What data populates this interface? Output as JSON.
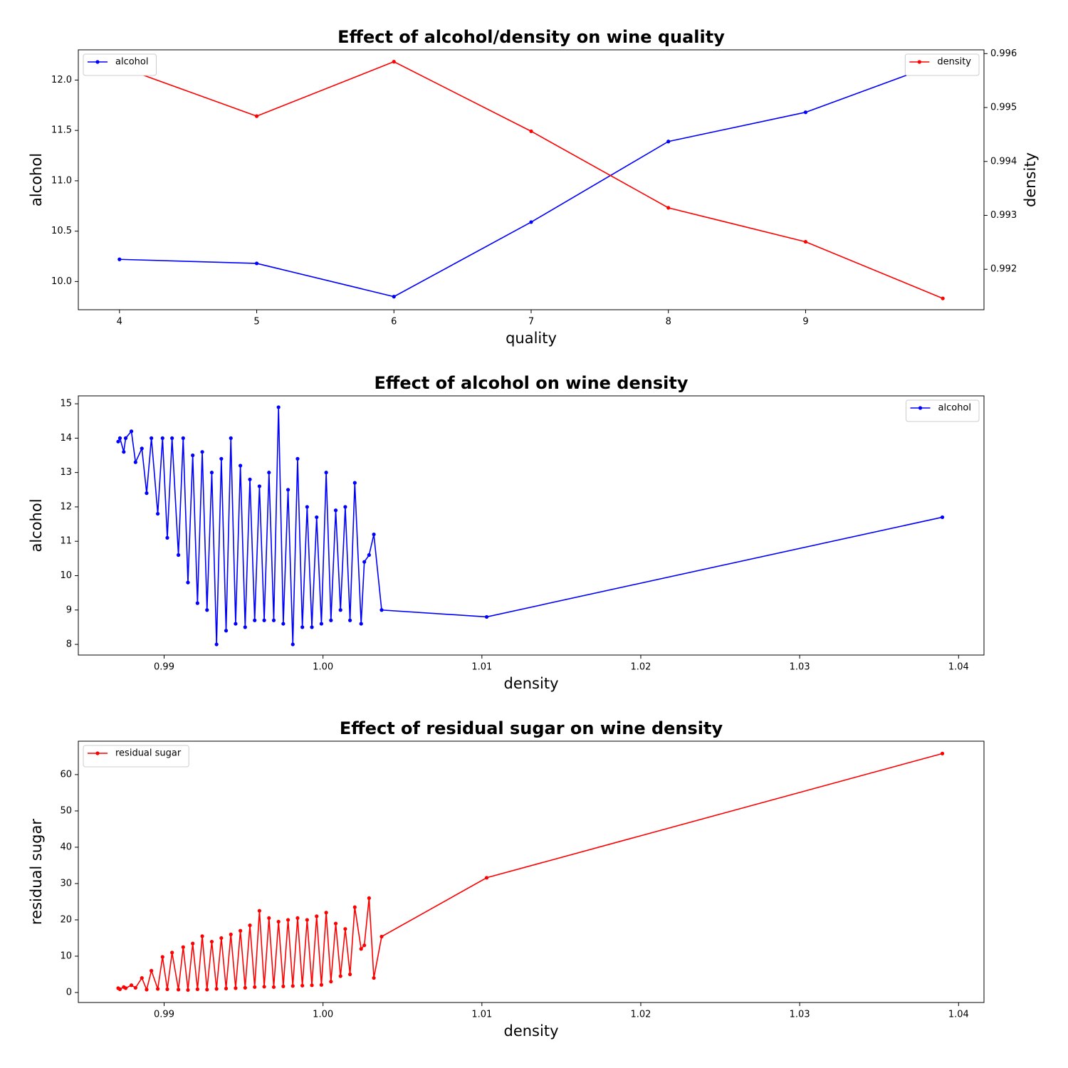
{
  "chart_data": [
    {
      "type": "line",
      "title": "Effect of alcohol/density on wine quality",
      "xlabel": "quality",
      "ylabel": "alcohol",
      "y2label": "density",
      "x": [
        4,
        5,
        6,
        7,
        8,
        9,
        10
      ],
      "xlim": [
        3.7,
        10.3
      ],
      "xticks": [
        4,
        5,
        6,
        7,
        8,
        9
      ],
      "ylim": [
        9.72,
        12.3
      ],
      "yticks": [
        {
          "value": 10.0,
          "label": "10.0"
        },
        10.5,
        {
          "value": 11.0,
          "label": "11.0"
        },
        11.5,
        {
          "value": 12.0,
          "label": "12.0"
        }
      ],
      "y2lim": [
        0.99125,
        0.99607
      ],
      "y2ticks": [
        0.992,
        0.993,
        0.994,
        0.995,
        0.996
      ],
      "series": [
        {
          "name": "alcohol",
          "color": "#0000ff",
          "legend": "upper left",
          "values": [
            10.22,
            10.18,
            9.85,
            10.59,
            11.39,
            11.68,
            12.18
          ]
        },
        {
          "name": "density",
          "color": "#ff0000",
          "legend": "upper right",
          "axis": "y2",
          "values": [
            0.99576,
            0.99484,
            0.99585,
            0.99456,
            0.99314,
            0.99251,
            0.99146
          ]
        }
      ]
    },
    {
      "type": "line",
      "title": "Effect of alcohol on wine density",
      "xlabel": "density",
      "ylabel": "alcohol",
      "legend": "upper right",
      "x": [
        0.98711,
        0.98722,
        0.98746,
        0.98758,
        0.98794,
        0.9882,
        0.9886,
        0.9889,
        0.9892,
        0.9896,
        0.9899,
        0.9902,
        0.9905,
        0.9909,
        0.9912,
        0.9915,
        0.9918,
        0.9921,
        0.9924,
        0.9927,
        0.993,
        0.9933,
        0.9936,
        0.9939,
        0.9942,
        0.9945,
        0.9948,
        0.9951,
        0.9954,
        0.9957,
        0.996,
        0.9963,
        0.9966,
        0.9969,
        0.9972,
        0.9975,
        0.9978,
        0.9981,
        0.9984,
        0.9987,
        0.999,
        0.9993,
        0.9996,
        0.9999,
        1.0002,
        1.0005,
        1.0008,
        1.0011,
        1.0014,
        1.0017,
        1.002,
        1.0024,
        1.0026,
        1.0029,
        1.0032,
        1.00369,
        1.0103,
        1.03898
      ],
      "xlim": [
        0.9846,
        1.0416
      ],
      "xticks": [
        0.99,
        {
          "value": 1.0,
          "label": "1.00"
        },
        1.01,
        1.02,
        1.03,
        1.04
      ],
      "ylim": [
        7.69,
        15.23
      ],
      "yticks": [
        8,
        9,
        10,
        11,
        12,
        13,
        14,
        15
      ],
      "series": [
        {
          "name": "alcohol",
          "color": "#0000ff",
          "values": [
            13.9,
            14.0,
            13.6,
            14.0,
            14.2,
            13.3,
            13.7,
            12.4,
            14.0,
            11.8,
            14.0,
            11.1,
            14.0,
            10.6,
            14.0,
            9.8,
            13.5,
            9.2,
            13.6,
            9.0,
            13.0,
            8.0,
            13.4,
            8.4,
            14.0,
            8.6,
            13.2,
            8.5,
            12.8,
            8.7,
            12.6,
            8.7,
            13.0,
            8.7,
            14.9,
            8.6,
            12.5,
            8.0,
            13.4,
            8.5,
            12.0,
            8.5,
            11.7,
            8.6,
            13.0,
            8.7,
            11.9,
            9.0,
            12.0,
            8.7,
            12.7,
            8.6,
            10.4,
            10.6,
            11.2,
            9.0,
            8.8,
            11.7
          ]
        }
      ]
    },
    {
      "type": "line",
      "title": "Effect of residual sugar on wine density",
      "xlabel": "density",
      "ylabel": "residual sugar",
      "legend": "upper left",
      "x": [
        0.98711,
        0.98722,
        0.98746,
        0.98758,
        0.98794,
        0.9882,
        0.9886,
        0.9889,
        0.9892,
        0.9896,
        0.9899,
        0.9902,
        0.9905,
        0.9909,
        0.9912,
        0.9915,
        0.9918,
        0.9921,
        0.9924,
        0.9927,
        0.993,
        0.9933,
        0.9936,
        0.9939,
        0.9942,
        0.9945,
        0.9948,
        0.9951,
        0.9954,
        0.9957,
        0.996,
        0.9963,
        0.9966,
        0.9969,
        0.9972,
        0.9975,
        0.9978,
        0.9981,
        0.9984,
        0.9987,
        0.999,
        0.9993,
        0.9996,
        0.9999,
        1.0002,
        1.0005,
        1.0008,
        1.0011,
        1.0014,
        1.0017,
        1.002,
        1.0024,
        1.0026,
        1.0029,
        1.0032,
        1.00369,
        1.0103,
        1.03898
      ],
      "xlim": [
        0.9846,
        1.0416
      ],
      "xticks": [
        0.99,
        {
          "value": 1.0,
          "label": "1.00"
        },
        1.01,
        1.02,
        1.03,
        1.04
      ],
      "ylim": [
        -2.75,
        69.2
      ],
      "yticks": [
        0,
        10,
        20,
        30,
        40,
        50,
        60
      ],
      "series": [
        {
          "name": "residual sugar",
          "color": "#ff0000",
          "values": [
            1.2,
            0.9,
            1.5,
            1.2,
            2.0,
            1.3,
            4.0,
            0.8,
            6.0,
            1.0,
            9.8,
            0.9,
            11.0,
            0.8,
            12.5,
            0.7,
            13.5,
            0.9,
            15.5,
            0.8,
            14.0,
            1.0,
            15.0,
            1.1,
            16.0,
            1.2,
            17.0,
            1.3,
            18.5,
            1.5,
            22.5,
            1.6,
            20.5,
            1.5,
            19.5,
            1.7,
            20.0,
            1.8,
            20.5,
            1.9,
            20.0,
            2.0,
            21.0,
            2.1,
            22.0,
            3.0,
            19.0,
            4.5,
            17.5,
            5.0,
            23.5,
            12.0,
            13.0,
            26.0,
            4.0,
            15.4,
            31.6,
            65.8
          ]
        }
      ]
    }
  ]
}
